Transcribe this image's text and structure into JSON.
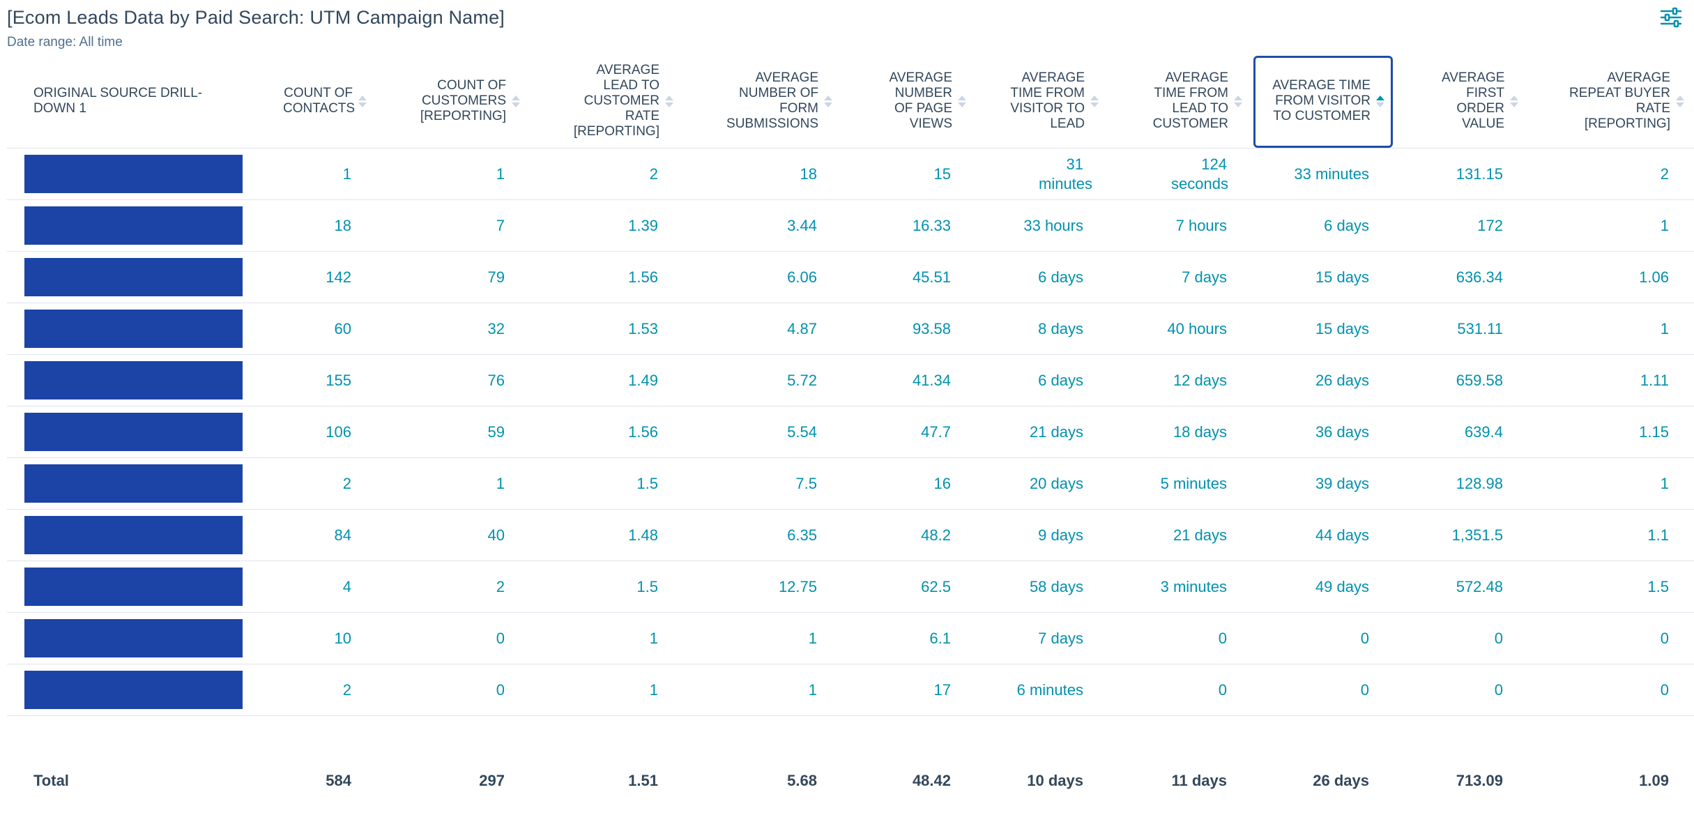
{
  "report": {
    "title": "[Ecom Leads Data by Paid Search: UTM Campaign Name]",
    "date_range_label": "Date range:",
    "date_range_value": "All time",
    "filter_icon": "sliders-icon"
  },
  "table": {
    "headers": [
      "ORIGINAL SOURCE DRILL-DOWN 1",
      "COUNT OF CONTACTS",
      "COUNT OF CUSTOMERS [REPORTING]",
      "AVERAGE LEAD TO CUSTOMER RATE [REPORTING]",
      "AVERAGE NUMBER OF FORM SUBMISSIONS",
      "AVERAGE NUMBER OF PAGE VIEWS",
      "AVERAGE TIME FROM VISITOR TO LEAD",
      "AVERAGE TIME FROM LEAD TO CUSTOMER",
      "AVERAGE TIME FROM VISITOR TO CUSTOMER",
      "AVERAGE FIRST ORDER VALUE",
      "AVERAGE REPEAT BUYER RATE [REPORTING]"
    ],
    "sorted_column": "AVERAGE TIME FROM VISITOR TO CUSTOMER",
    "sort_direction": "ascending",
    "rows": [
      [
        "",
        "1",
        "1",
        "2",
        "18",
        "15",
        "31 minutes",
        "124 seconds",
        "33 minutes",
        "131.15",
        "2"
      ],
      [
        "",
        "18",
        "7",
        "1.39",
        "3.44",
        "16.33",
        "33 hours",
        "7 hours",
        "6 days",
        "172",
        "1"
      ],
      [
        "",
        "142",
        "79",
        "1.56",
        "6.06",
        "45.51",
        "6 days",
        "7 days",
        "15 days",
        "636.34",
        "1.06"
      ],
      [
        "",
        "60",
        "32",
        "1.53",
        "4.87",
        "93.58",
        "8 days",
        "40 hours",
        "15 days",
        "531.11",
        "1"
      ],
      [
        "",
        "155",
        "76",
        "1.49",
        "5.72",
        "41.34",
        "6 days",
        "12 days",
        "26 days",
        "659.58",
        "1.11"
      ],
      [
        "",
        "106",
        "59",
        "1.56",
        "5.54",
        "47.7",
        "21 days",
        "18 days",
        "36 days",
        "639.4",
        "1.15"
      ],
      [
        "",
        "2",
        "1",
        "1.5",
        "7.5",
        "16",
        "20 days",
        "5 minutes",
        "39 days",
        "128.98",
        "1"
      ],
      [
        "",
        "84",
        "40",
        "1.48",
        "6.35",
        "48.2",
        "9 days",
        "21 days",
        "44 days",
        "1,351.5",
        "1.1"
      ],
      [
        "",
        "4",
        "2",
        "1.5",
        "12.75",
        "62.5",
        "58 days",
        "3 minutes",
        "49 days",
        "572.48",
        "1.5"
      ],
      [
        "",
        "10",
        "0",
        "1",
        "1",
        "6.1",
        "7 days",
        "0",
        "0",
        "0",
        "0"
      ],
      [
        "",
        "2",
        "0",
        "1",
        "1",
        "17",
        "6 minutes",
        "0",
        "0",
        "0",
        "0"
      ]
    ],
    "totals": [
      "Total",
      "584",
      "297",
      "1.51",
      "5.68",
      "48.42",
      "10 days",
      "11 days",
      "26 days",
      "713.09",
      "1.09"
    ]
  },
  "colors": {
    "text": "#33475b",
    "link": "#0091ae",
    "redaction": "#1c44a6",
    "selected_border": "#1e4fa8"
  }
}
